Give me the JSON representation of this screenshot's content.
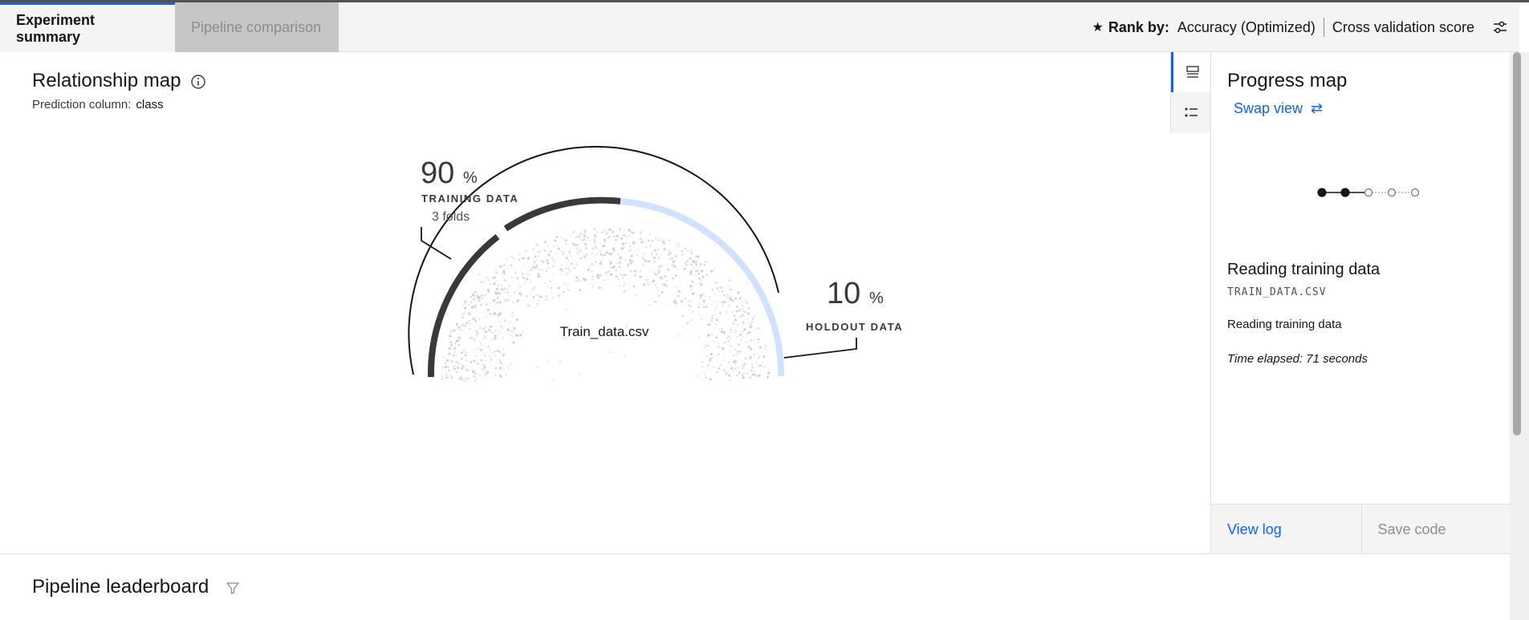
{
  "tabs": [
    {
      "label": "Experiment summary",
      "active": true
    },
    {
      "label": "Pipeline comparison",
      "active": false
    }
  ],
  "rank": {
    "label": "Rank by:",
    "metric": "Accuracy (Optimized)",
    "score_type": "Cross validation score",
    "star_icon": "star-icon",
    "settings_icon": "settings-adjust-icon"
  },
  "relationship_map": {
    "title": "Relationship map",
    "prediction_label": "Prediction column:",
    "prediction_value": "class",
    "training": {
      "percent": "90",
      "unit": "%",
      "label": "TRAINING DATA",
      "folds": "3 folds"
    },
    "holdout": {
      "percent": "10",
      "unit": "%",
      "label": "HOLDOUT DATA"
    },
    "dataset": "Train_data.csv"
  },
  "progress_map": {
    "title": "Progress map",
    "swap_label": "Swap view",
    "steps_completed": 2,
    "steps_total": 5,
    "stage_title": "Reading training data",
    "stage_file": "TRAIN_DATA.CSV",
    "stage_status": "Reading training data",
    "time_elapsed": "Time elapsed: 71 seconds",
    "view_log": "View log",
    "save_code": "Save code"
  },
  "leaderboard": {
    "title": "Pipeline leaderboard"
  },
  "colors": {
    "accent": "#0f62fe",
    "train_arc": "#393939",
    "holdout_arc": "#d0e2ff"
  }
}
